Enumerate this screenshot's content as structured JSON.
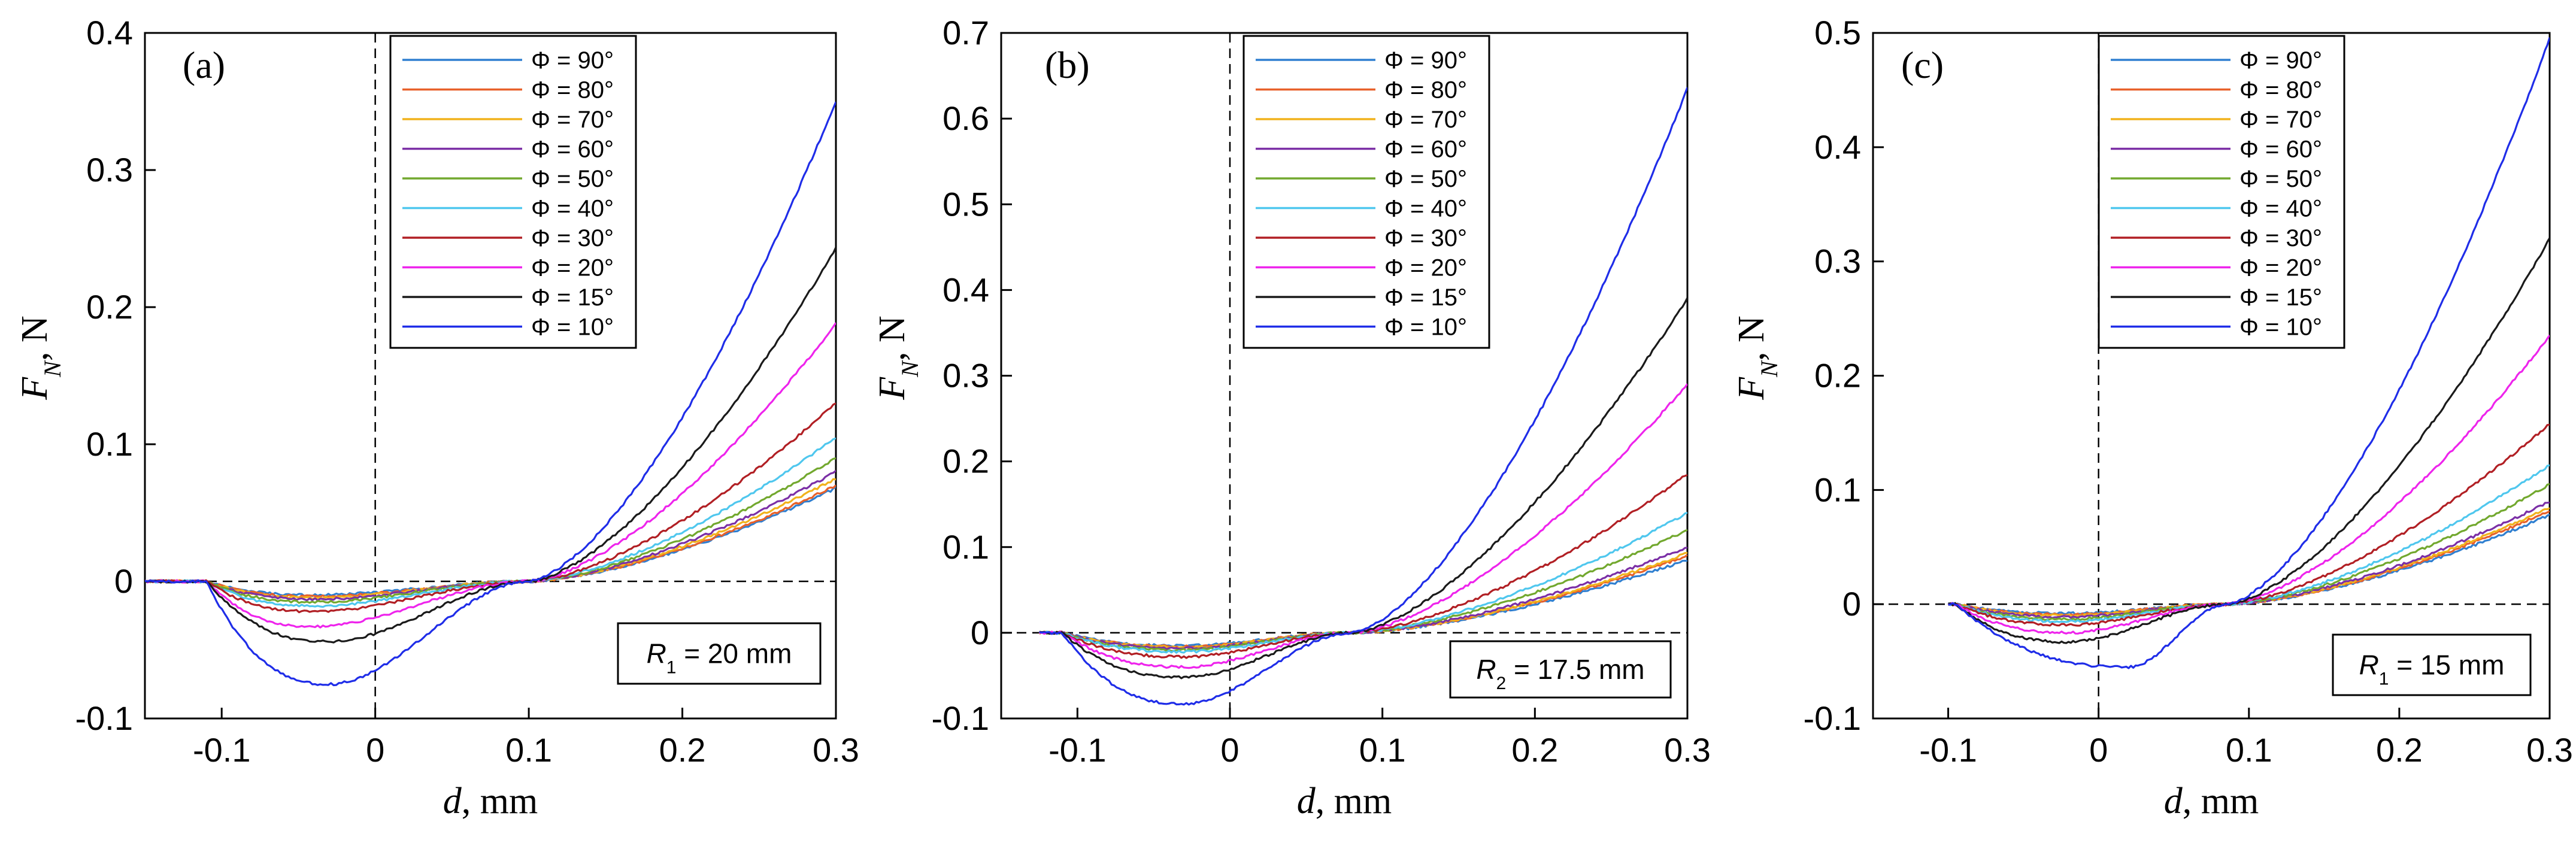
{
  "figure": {
    "line_colors": [
      "#2f7fd0",
      "#e8612a",
      "#f1b21c",
      "#7b2fa6",
      "#72a82e",
      "#4fc7ee",
      "#b11f24",
      "#ee24ec",
      "#1a1a1a",
      "#1f2de8"
    ]
  },
  "chart_data": [
    {
      "type": "line",
      "panel_label": "(a)",
      "xlabel_var": "d",
      "xlabel_unit": ", mm",
      "ylabel_var": "F",
      "ylabel_sub": "N",
      "ylabel_unit": ", N",
      "xlim": [
        -0.15,
        0.3
      ],
      "ylim": [
        -0.1,
        0.4
      ],
      "xticks": [
        -0.1,
        0,
        0.1,
        0.2,
        0.3
      ],
      "xtick_labels": [
        "-0.1",
        "0",
        "0.1",
        "0.2",
        "0.3"
      ],
      "yticks": [
        -0.1,
        0,
        0.1,
        0.2,
        0.3,
        0.4
      ],
      "ytick_labels": [
        "-0.1",
        "0",
        "0.1",
        "0.2",
        "0.3",
        "0.4"
      ],
      "annotation": {
        "var": "R",
        "sub": "1",
        "text": " = 20 mm"
      },
      "dashed_zero_lines": true,
      "x_start": -0.15,
      "x_contact": -0.11,
      "x_cross": 0.1,
      "series": [
        {
          "name": "Φ = 90°",
          "x_min": -0.04,
          "y_min": -0.01,
          "y_end": 0.068
        },
        {
          "name": "Φ = 80°",
          "x_min": -0.04,
          "y_min": -0.011,
          "y_end": 0.07
        },
        {
          "name": "Φ = 70°",
          "x_min": -0.04,
          "y_min": -0.012,
          "y_end": 0.075
        },
        {
          "name": "Φ = 60°",
          "x_min": -0.04,
          "y_min": -0.013,
          "y_end": 0.08
        },
        {
          "name": "Φ = 50°",
          "x_min": -0.04,
          "y_min": -0.015,
          "y_end": 0.09
        },
        {
          "name": "Φ = 40°",
          "x_min": -0.04,
          "y_min": -0.018,
          "y_end": 0.105
        },
        {
          "name": "Φ = 30°",
          "x_min": -0.04,
          "y_min": -0.022,
          "y_end": 0.13
        },
        {
          "name": "Φ = 20°",
          "x_min": -0.04,
          "y_min": -0.033,
          "y_end": 0.188
        },
        {
          "name": "Φ = 15°",
          "x_min": -0.03,
          "y_min": -0.044,
          "y_end": 0.243
        },
        {
          "name": "Φ = 10°",
          "x_min": -0.03,
          "y_min": -0.075,
          "y_end": 0.35
        }
      ]
    },
    {
      "type": "line",
      "panel_label": "(b)",
      "xlabel_var": "d",
      "xlabel_unit": ", mm",
      "ylabel_var": "F",
      "ylabel_sub": "N",
      "ylabel_unit": ", N",
      "xlim": [
        -0.15,
        0.3
      ],
      "ylim": [
        -0.1,
        0.7
      ],
      "xticks": [
        -0.1,
        0,
        0.1,
        0.2,
        0.3
      ],
      "xtick_labels": [
        "-0.1",
        "0",
        "0.1",
        "0.2",
        "0.3"
      ],
      "yticks": [
        -0.1,
        0,
        0.1,
        0.2,
        0.3,
        0.4,
        0.5,
        0.6,
        0.7
      ],
      "ytick_labels": [
        "-0.1",
        "0",
        "0.1",
        "0.2",
        "0.3",
        "0.4",
        "0.5",
        "0.6",
        "0.7"
      ],
      "annotation": {
        "var": "R",
        "sub": "2",
        "text": " = 17.5 mm"
      },
      "dashed_zero_lines": true,
      "x_start": -0.125,
      "x_contact": -0.11,
      "x_cross": 0.08,
      "series": [
        {
          "name": "Φ = 90°",
          "x_min": -0.03,
          "y_min": -0.015,
          "y_end": 0.085
        },
        {
          "name": "Φ = 80°",
          "x_min": -0.03,
          "y_min": -0.016,
          "y_end": 0.09
        },
        {
          "name": "Φ = 70°",
          "x_min": -0.03,
          "y_min": -0.017,
          "y_end": 0.093
        },
        {
          "name": "Φ = 60°",
          "x_min": -0.03,
          "y_min": -0.018,
          "y_end": 0.1
        },
        {
          "name": "Φ = 50°",
          "x_min": -0.03,
          "y_min": -0.02,
          "y_end": 0.12
        },
        {
          "name": "Φ = 40°",
          "x_min": -0.03,
          "y_min": -0.022,
          "y_end": 0.14
        },
        {
          "name": "Φ = 30°",
          "x_min": -0.03,
          "y_min": -0.028,
          "y_end": 0.185
        },
        {
          "name": "Φ = 20°",
          "x_min": -0.03,
          "y_min": -0.04,
          "y_end": 0.29
        },
        {
          "name": "Φ = 15°",
          "x_min": -0.03,
          "y_min": -0.052,
          "y_end": 0.39
        },
        {
          "name": "Φ = 10°",
          "x_min": -0.03,
          "y_min": -0.083,
          "y_end": 0.635
        }
      ]
    },
    {
      "type": "line",
      "panel_label": "(c)",
      "xlabel_var": "d",
      "xlabel_unit": ", mm",
      "ylabel_var": "F",
      "ylabel_sub": "N",
      "ylabel_unit": ", N",
      "xlim": [
        -0.15,
        0.3
      ],
      "ylim": [
        -0.1,
        0.5
      ],
      "xticks": [
        -0.1,
        0,
        0.1,
        0.2,
        0.3
      ],
      "xtick_labels": [
        "-0.1",
        "0",
        "0.1",
        "0.2",
        "0.3"
      ],
      "yticks": [
        -0.1,
        0,
        0.1,
        0.2,
        0.3,
        0.4,
        0.5
      ],
      "ytick_labels": [
        "-0.1",
        "0",
        "0.1",
        "0.2",
        "0.3",
        "0.4",
        "0.5"
      ],
      "annotation": {
        "var": "R",
        "sub": "1",
        "text": " = 15 mm"
      },
      "dashed_zero_lines": true,
      "x_start": -0.1,
      "x_contact": -0.095,
      "x_cross": 0.085,
      "series": [
        {
          "name": "Φ = 90°",
          "x_min": -0.02,
          "y_min": -0.008,
          "y_end": 0.078
        },
        {
          "name": "Φ = 80°",
          "x_min": -0.02,
          "y_min": -0.009,
          "y_end": 0.082
        },
        {
          "name": "Φ = 70°",
          "x_min": -0.02,
          "y_min": -0.01,
          "y_end": 0.085
        },
        {
          "name": "Φ = 60°",
          "x_min": -0.02,
          "y_min": -0.011,
          "y_end": 0.09
        },
        {
          "name": "Φ = 50°",
          "x_min": -0.02,
          "y_min": -0.013,
          "y_end": 0.105
        },
        {
          "name": "Φ = 40°",
          "x_min": -0.02,
          "y_min": -0.015,
          "y_end": 0.122
        },
        {
          "name": "Φ = 30°",
          "x_min": -0.02,
          "y_min": -0.018,
          "y_end": 0.158
        },
        {
          "name": "Φ = 20°",
          "x_min": -0.02,
          "y_min": -0.025,
          "y_end": 0.235
        },
        {
          "name": "Φ = 15°",
          "x_min": -0.02,
          "y_min": -0.033,
          "y_end": 0.32
        },
        {
          "name": "Φ = 10°",
          "x_min": 0.02,
          "y_min": -0.055,
          "y_end": 0.495
        }
      ]
    }
  ]
}
